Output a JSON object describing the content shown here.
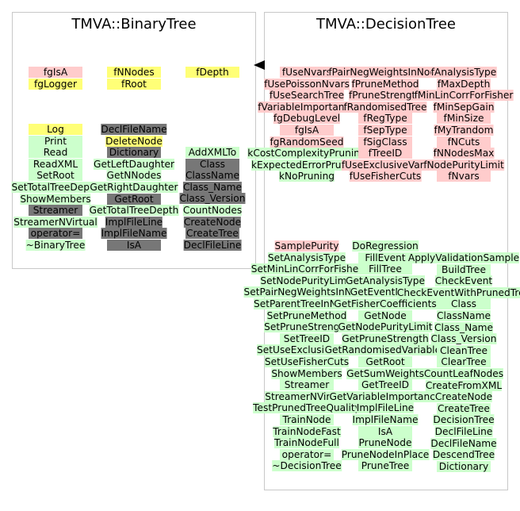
{
  "colors": {
    "yellow": "#ffff77",
    "pink": "#ffcccc",
    "green": "#ccffcc",
    "gray": "#777777"
  },
  "binary_tree": {
    "title": "TMVA::BinaryTree",
    "groups": [
      {
        "items": [
          {
            "text": "fgIsA",
            "color": "pink"
          },
          {
            "text": "fgLogger",
            "color": "yellow"
          }
        ]
      },
      {
        "items": [
          {
            "text": "fNNodes",
            "color": "yellow"
          },
          {
            "text": "fRoot",
            "color": "yellow"
          }
        ]
      },
      {
        "items": [
          {
            "text": "fDepth",
            "color": "yellow"
          }
        ]
      },
      {
        "items": [
          {
            "text": "Log",
            "color": "yellow"
          },
          {
            "text": "Print",
            "color": "green"
          },
          {
            "text": "Read",
            "color": "green"
          },
          {
            "text": "ReadXML",
            "color": "green"
          },
          {
            "text": "SetRoot",
            "color": "green"
          },
          {
            "text": "SetTotalTreeDepth",
            "color": "green"
          },
          {
            "text": "ShowMembers",
            "color": "green"
          },
          {
            "text": "Streamer",
            "color": "gray"
          },
          {
            "text": "StreamerNVirtual",
            "color": "green"
          },
          {
            "text": "operator=",
            "color": "gray"
          },
          {
            "text": "~BinaryTree",
            "color": "green"
          }
        ]
      },
      {
        "items": [
          {
            "text": "DeclFileName",
            "color": "gray"
          },
          {
            "text": "DeleteNode",
            "color": "yellow"
          },
          {
            "text": "Dictionary",
            "color": "gray"
          },
          {
            "text": "GetLeftDaughter",
            "color": "green"
          },
          {
            "text": "GetNNodes",
            "color": "green"
          },
          {
            "text": "GetRightDaughter",
            "color": "green"
          },
          {
            "text": "GetRoot",
            "color": "gray"
          },
          {
            "text": "GetTotalTreeDepth",
            "color": "green"
          },
          {
            "text": "ImplFileLine",
            "color": "gray"
          },
          {
            "text": "ImplFileName",
            "color": "gray"
          },
          {
            "text": "IsA",
            "color": "gray"
          }
        ]
      },
      {
        "items": [
          {
            "text": "AddXMLTo",
            "color": "green"
          },
          {
            "text": "Class",
            "color": "gray"
          },
          {
            "text": "ClassName",
            "color": "gray"
          },
          {
            "text": "Class_Name",
            "color": "gray"
          },
          {
            "text": "Class_Version",
            "color": "gray"
          },
          {
            "text": "CountNodes",
            "color": "green"
          },
          {
            "text": "CreateNode",
            "color": "gray"
          },
          {
            "text": "CreateTree",
            "color": "gray"
          },
          {
            "text": "DeclFileLine",
            "color": "gray"
          }
        ]
      }
    ]
  },
  "decision_tree": {
    "title": "TMVA::DecisionTree",
    "groups": [
      {
        "items": [
          {
            "text": "fUseNvars",
            "color": "pink"
          },
          {
            "text": "fUsePoissonNvars",
            "color": "pink"
          },
          {
            "text": "fUseSearchTree",
            "color": "pink"
          },
          {
            "text": "fVariableImportance",
            "color": "pink"
          },
          {
            "text": "fgDebugLevel",
            "color": "pink"
          },
          {
            "text": "fgIsA",
            "color": "pink"
          },
          {
            "text": "fgRandomSeed",
            "color": "pink"
          },
          {
            "text": "kCostComplexityPruning",
            "color": "green"
          },
          {
            "text": "kExpectedErrorPruning",
            "color": "green"
          },
          {
            "text": "kNoPruning",
            "color": "green"
          }
        ]
      },
      {
        "items": [
          {
            "text": "fPairNegWeightsInNode",
            "color": "pink"
          },
          {
            "text": "fPruneMethod",
            "color": "pink"
          },
          {
            "text": "fPruneStrength",
            "color": "pink"
          },
          {
            "text": "fRandomisedTree",
            "color": "pink"
          },
          {
            "text": "fRegType",
            "color": "pink"
          },
          {
            "text": "fSepType",
            "color": "pink"
          },
          {
            "text": "fSigClass",
            "color": "pink"
          },
          {
            "text": "fTreeID",
            "color": "pink"
          },
          {
            "text": "fUseExclusiveVars",
            "color": "pink"
          },
          {
            "text": "fUseFisherCuts",
            "color": "pink"
          }
        ]
      },
      {
        "items": [
          {
            "text": "fAnalysisType",
            "color": "pink"
          },
          {
            "text": "fMaxDepth",
            "color": "pink"
          },
          {
            "text": "fMinLinCorrForFisher",
            "color": "pink"
          },
          {
            "text": "fMinSepGain",
            "color": "pink"
          },
          {
            "text": "fMinSize",
            "color": "pink"
          },
          {
            "text": "fMyTrandom",
            "color": "pink"
          },
          {
            "text": "fNCuts",
            "color": "pink"
          },
          {
            "text": "fNNodesMax",
            "color": "pink"
          },
          {
            "text": "fNodePurityLimit",
            "color": "pink"
          },
          {
            "text": "fNvars",
            "color": "pink"
          }
        ]
      },
      {
        "items": [
          {
            "text": "SamplePurity",
            "color": "pink"
          },
          {
            "text": "SetAnalysisType",
            "color": "green"
          },
          {
            "text": "SetMinLinCorrForFisher",
            "color": "green"
          },
          {
            "text": "SetNodePurityLimit",
            "color": "green"
          },
          {
            "text": "SetPairNegWeightsInNode",
            "color": "green"
          },
          {
            "text": "SetParentTreeInNodes",
            "color": "green"
          },
          {
            "text": "SetPruneMethod",
            "color": "green"
          },
          {
            "text": "SetPruneStrength",
            "color": "green"
          },
          {
            "text": "SetTreeID",
            "color": "green"
          },
          {
            "text": "SetUseExclusiveVars",
            "color": "green"
          },
          {
            "text": "SetUseFisherCuts",
            "color": "green"
          },
          {
            "text": "ShowMembers",
            "color": "green"
          },
          {
            "text": "Streamer",
            "color": "green"
          },
          {
            "text": "StreamerNVirtual",
            "color": "green"
          },
          {
            "text": "TestPrunedTreeQuality",
            "color": "green"
          },
          {
            "text": "TrainNode",
            "color": "green"
          },
          {
            "text": "TrainNodeFast",
            "color": "green"
          },
          {
            "text": "TrainNodeFull",
            "color": "green"
          },
          {
            "text": "operator=",
            "color": "green"
          },
          {
            "text": "~DecisionTree",
            "color": "green"
          }
        ]
      },
      {
        "items": [
          {
            "text": "DoRegression",
            "color": "green"
          },
          {
            "text": "FillEvent",
            "color": "green"
          },
          {
            "text": "FillTree",
            "color": "green"
          },
          {
            "text": "GetAnalysisType",
            "color": "green"
          },
          {
            "text": "GetEventNode",
            "color": "green"
          },
          {
            "text": "GetFisherCoefficients",
            "color": "green"
          },
          {
            "text": "GetNode",
            "color": "green"
          },
          {
            "text": "GetNodePurityLimit",
            "color": "green"
          },
          {
            "text": "GetPruneStrength",
            "color": "green"
          },
          {
            "text": "GetRandomisedVariables",
            "color": "green"
          },
          {
            "text": "GetRoot",
            "color": "green"
          },
          {
            "text": "GetSumWeights",
            "color": "green"
          },
          {
            "text": "GetTreeID",
            "color": "green"
          },
          {
            "text": "GetVariableImportance",
            "color": "green"
          },
          {
            "text": "ImplFileLine",
            "color": "green"
          },
          {
            "text": "ImplFileName",
            "color": "green"
          },
          {
            "text": "IsA",
            "color": "green"
          },
          {
            "text": "PruneNode",
            "color": "green"
          },
          {
            "text": "PruneNodeInPlace",
            "color": "green"
          },
          {
            "text": "PruneTree",
            "color": "green"
          }
        ]
      },
      {
        "items": [
          {
            "text": "ApplyValidationSample",
            "color": "green"
          },
          {
            "text": "BuildTree",
            "color": "green"
          },
          {
            "text": "CheckEvent",
            "color": "green"
          },
          {
            "text": "CheckEventWithPrunedTree",
            "color": "green"
          },
          {
            "text": "Class",
            "color": "green"
          },
          {
            "text": "ClassName",
            "color": "green"
          },
          {
            "text": "Class_Name",
            "color": "green"
          },
          {
            "text": "Class_Version",
            "color": "green"
          },
          {
            "text": "CleanTree",
            "color": "green"
          },
          {
            "text": "ClearTree",
            "color": "green"
          },
          {
            "text": "CountLeafNodes",
            "color": "green"
          },
          {
            "text": "CreateFromXML",
            "color": "green"
          },
          {
            "text": "CreateNode",
            "color": "green"
          },
          {
            "text": "CreateTree",
            "color": "green"
          },
          {
            "text": "DecisionTree",
            "color": "green"
          },
          {
            "text": "DeclFileLine",
            "color": "green"
          },
          {
            "text": "DeclFileName",
            "color": "green"
          },
          {
            "text": "DescendTree",
            "color": "green"
          },
          {
            "text": "Dictionary",
            "color": "green"
          }
        ]
      }
    ]
  }
}
